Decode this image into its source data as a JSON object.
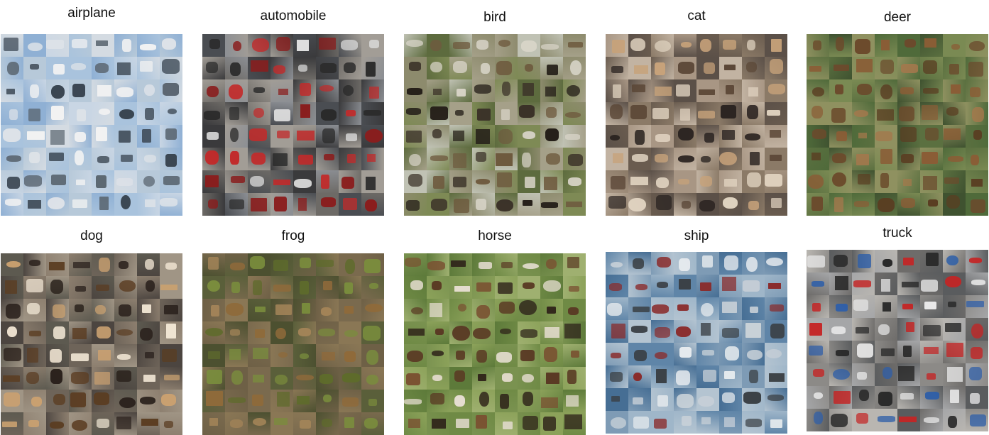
{
  "panels": [
    {
      "label": "airplane",
      "bg": [
        "#a9c3dd",
        "#c9d6e4",
        "#8fb0d4",
        "#d4dbe2",
        "#b7c9d9"
      ],
      "fg": [
        "#f2f2f2",
        "#5a6570",
        "#dfe3e8",
        "#394450"
      ]
    },
    {
      "label": "automobile",
      "bg": [
        "#3a3a3c",
        "#6d6a66",
        "#8c8f94",
        "#4a4d52",
        "#a29d96"
      ],
      "fg": [
        "#c22a2a",
        "#e0e0e0",
        "#2a2a2a",
        "#8a1d1d"
      ]
    },
    {
      "label": "bird",
      "bg": [
        "#7e8a55",
        "#a5a089",
        "#5d6b3e",
        "#c0c2b4",
        "#8d8b6d"
      ],
      "fg": [
        "#3b3228",
        "#6e5a3e",
        "#d8d4c8",
        "#241e18"
      ]
    },
    {
      "label": "cat",
      "bg": [
        "#8b7a67",
        "#a89684",
        "#6a5c4f",
        "#c2b3a2",
        "#5b5048"
      ],
      "fg": [
        "#5a4636",
        "#c7a27a",
        "#2c2522",
        "#e0d3c0"
      ]
    },
    {
      "label": "deer",
      "bg": [
        "#5b7040",
        "#7a8a53",
        "#3f5230",
        "#8f9160",
        "#4f6a3a"
      ],
      "fg": [
        "#8a5d36",
        "#6b4a2c",
        "#a3784c",
        "#5a3e22"
      ]
    },
    {
      "label": "dog",
      "bg": [
        "#6e6459",
        "#8d7f6f",
        "#4c4540",
        "#a09585",
        "#5d5a50"
      ],
      "fg": [
        "#c9a070",
        "#efe4d2",
        "#5b3d22",
        "#2a211c"
      ]
    },
    {
      "label": "frog",
      "bg": [
        "#6e6046",
        "#8a7755",
        "#5a5f3a",
        "#7a6a4e",
        "#4c5030"
      ],
      "fg": [
        "#7a8d3d",
        "#8f6a3a",
        "#5e6b2b",
        "#a38458"
      ]
    },
    {
      "label": "horse",
      "bg": [
        "#6f8a45",
        "#8ca25a",
        "#5d7a3a",
        "#9fb070",
        "#7a9250"
      ],
      "fg": [
        "#5a3a24",
        "#e5ddd0",
        "#2c2018",
        "#7a5232"
      ]
    },
    {
      "label": "ship",
      "bg": [
        "#7e9bb5",
        "#5f85a8",
        "#9fb6c9",
        "#466e94",
        "#b4c4d1"
      ],
      "fg": [
        "#e8ecef",
        "#3a3f44",
        "#c9d1d8",
        "#8a2a2a"
      ]
    },
    {
      "label": "truck",
      "bg": [
        "#8c8a87",
        "#6e6c6a",
        "#a5a6a8",
        "#5a5c5e",
        "#b9b6b1"
      ],
      "fg": [
        "#c42525",
        "#2f5fa8",
        "#e8e8e8",
        "#2a2a2a"
      ]
    }
  ]
}
